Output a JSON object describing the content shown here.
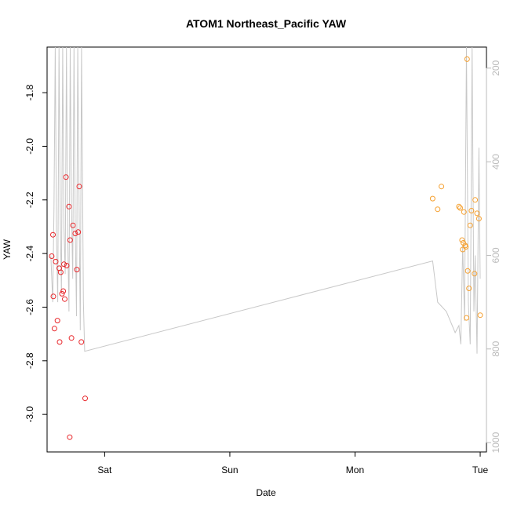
{
  "chart_data": {
    "type": "scatter",
    "title": "ATOM1 Northeast_Pacific YAW",
    "xlabel": "Date",
    "ylabel": "YAW",
    "x_ticks": [
      "Sat",
      "Sun",
      "Mon",
      "Tue"
    ],
    "xlim": [
      -0.46,
      3.05
    ],
    "ylim": [
      -3.14,
      -1.63
    ],
    "y_ticks": [
      -3.0,
      -2.8,
      -2.6,
      -2.4,
      -2.2,
      -2.0,
      -1.8
    ],
    "y_tick_labels": [
      "-3.0",
      "-2.8",
      "-2.6",
      "-2.4",
      "-2.2",
      "-2.0",
      "-1.8"
    ],
    "y2lim": [
      1020,
      155
    ],
    "y2_ticks": [
      200,
      400,
      600,
      800,
      1000
    ],
    "y2_tick_labels": [
      "200",
      "400",
      "600",
      "800",
      "1000"
    ],
    "grid": false,
    "colors": {
      "series_red": "#e8262a",
      "series_orange": "#f5a030",
      "line_gray": "#c8c8c8",
      "axis": "#000000",
      "right_axis": "#bbbbbb"
    },
    "series": [
      {
        "color": "#e8262a",
        "x": [
          -0.423,
          -0.41,
          -0.401,
          -0.391,
          -0.377,
          -0.363,
          -0.351,
          -0.341,
          -0.331,
          -0.325,
          -0.319,
          -0.303,
          -0.285,
          -0.276,
          -0.265,
          -0.253,
          -0.235,
          -0.222,
          -0.211,
          -0.203,
          -0.186,
          -0.156,
          -0.279,
          -0.309,
          -0.413,
          -0.36
        ],
        "y": [
          -2.41,
          -2.56,
          -2.68,
          -2.43,
          -2.65,
          -2.455,
          -2.47,
          -2.55,
          -2.54,
          -2.44,
          -2.57,
          -2.445,
          -2.225,
          -2.35,
          -2.715,
          -2.295,
          -2.325,
          -2.46,
          -2.32,
          -2.15,
          -2.73,
          -2.94,
          -3.085,
          -2.115,
          -2.33,
          -2.73
        ]
      },
      {
        "color": "#f5a030",
        "x": [
          2.62,
          2.66,
          2.69,
          2.83,
          2.84,
          2.855,
          2.86,
          2.865,
          2.87,
          2.88,
          2.885,
          2.89,
          2.895,
          2.9,
          2.91,
          2.92,
          2.93,
          2.955,
          2.96,
          2.975,
          2.99,
          3.0
        ],
        "y": [
          -2.195,
          -2.235,
          -2.15,
          -2.225,
          -2.23,
          -2.35,
          -2.385,
          -2.36,
          -2.245,
          -2.37,
          -2.375,
          -2.64,
          -1.675,
          -2.465,
          -2.53,
          -2.295,
          -2.24,
          -2.475,
          -2.2,
          -2.25,
          -2.27,
          -2.63
        ]
      }
    ],
    "gray_line": {
      "color": "#c8c8c8",
      "axis": "right",
      "x": [
        -0.43,
        -0.415,
        -0.405,
        -0.395,
        -0.385,
        -0.375,
        -0.365,
        -0.355,
        -0.345,
        -0.335,
        -0.325,
        -0.315,
        -0.305,
        -0.295,
        -0.285,
        -0.275,
        -0.265,
        -0.255,
        -0.245,
        -0.235,
        -0.225,
        -0.215,
        -0.205,
        -0.195,
        -0.185,
        -0.17,
        -0.16,
        2.62,
        2.66,
        2.73,
        2.8,
        2.83,
        2.845,
        2.86,
        2.875,
        2.89,
        2.905,
        2.92,
        2.935,
        2.95,
        2.96,
        2.975,
        2.99,
        3.0
      ],
      "y": [
        600,
        700,
        500,
        155,
        560,
        700,
        155,
        520,
        680,
        155,
        540,
        640,
        155,
        560,
        720,
        155,
        500,
        650,
        155,
        540,
        730,
        155,
        470,
        760,
        155,
        700,
        805,
        612,
        700,
        720,
        765,
        750,
        790,
        580,
        740,
        155,
        700,
        790,
        155,
        720,
        600,
        810,
        370,
        650
      ]
    }
  }
}
